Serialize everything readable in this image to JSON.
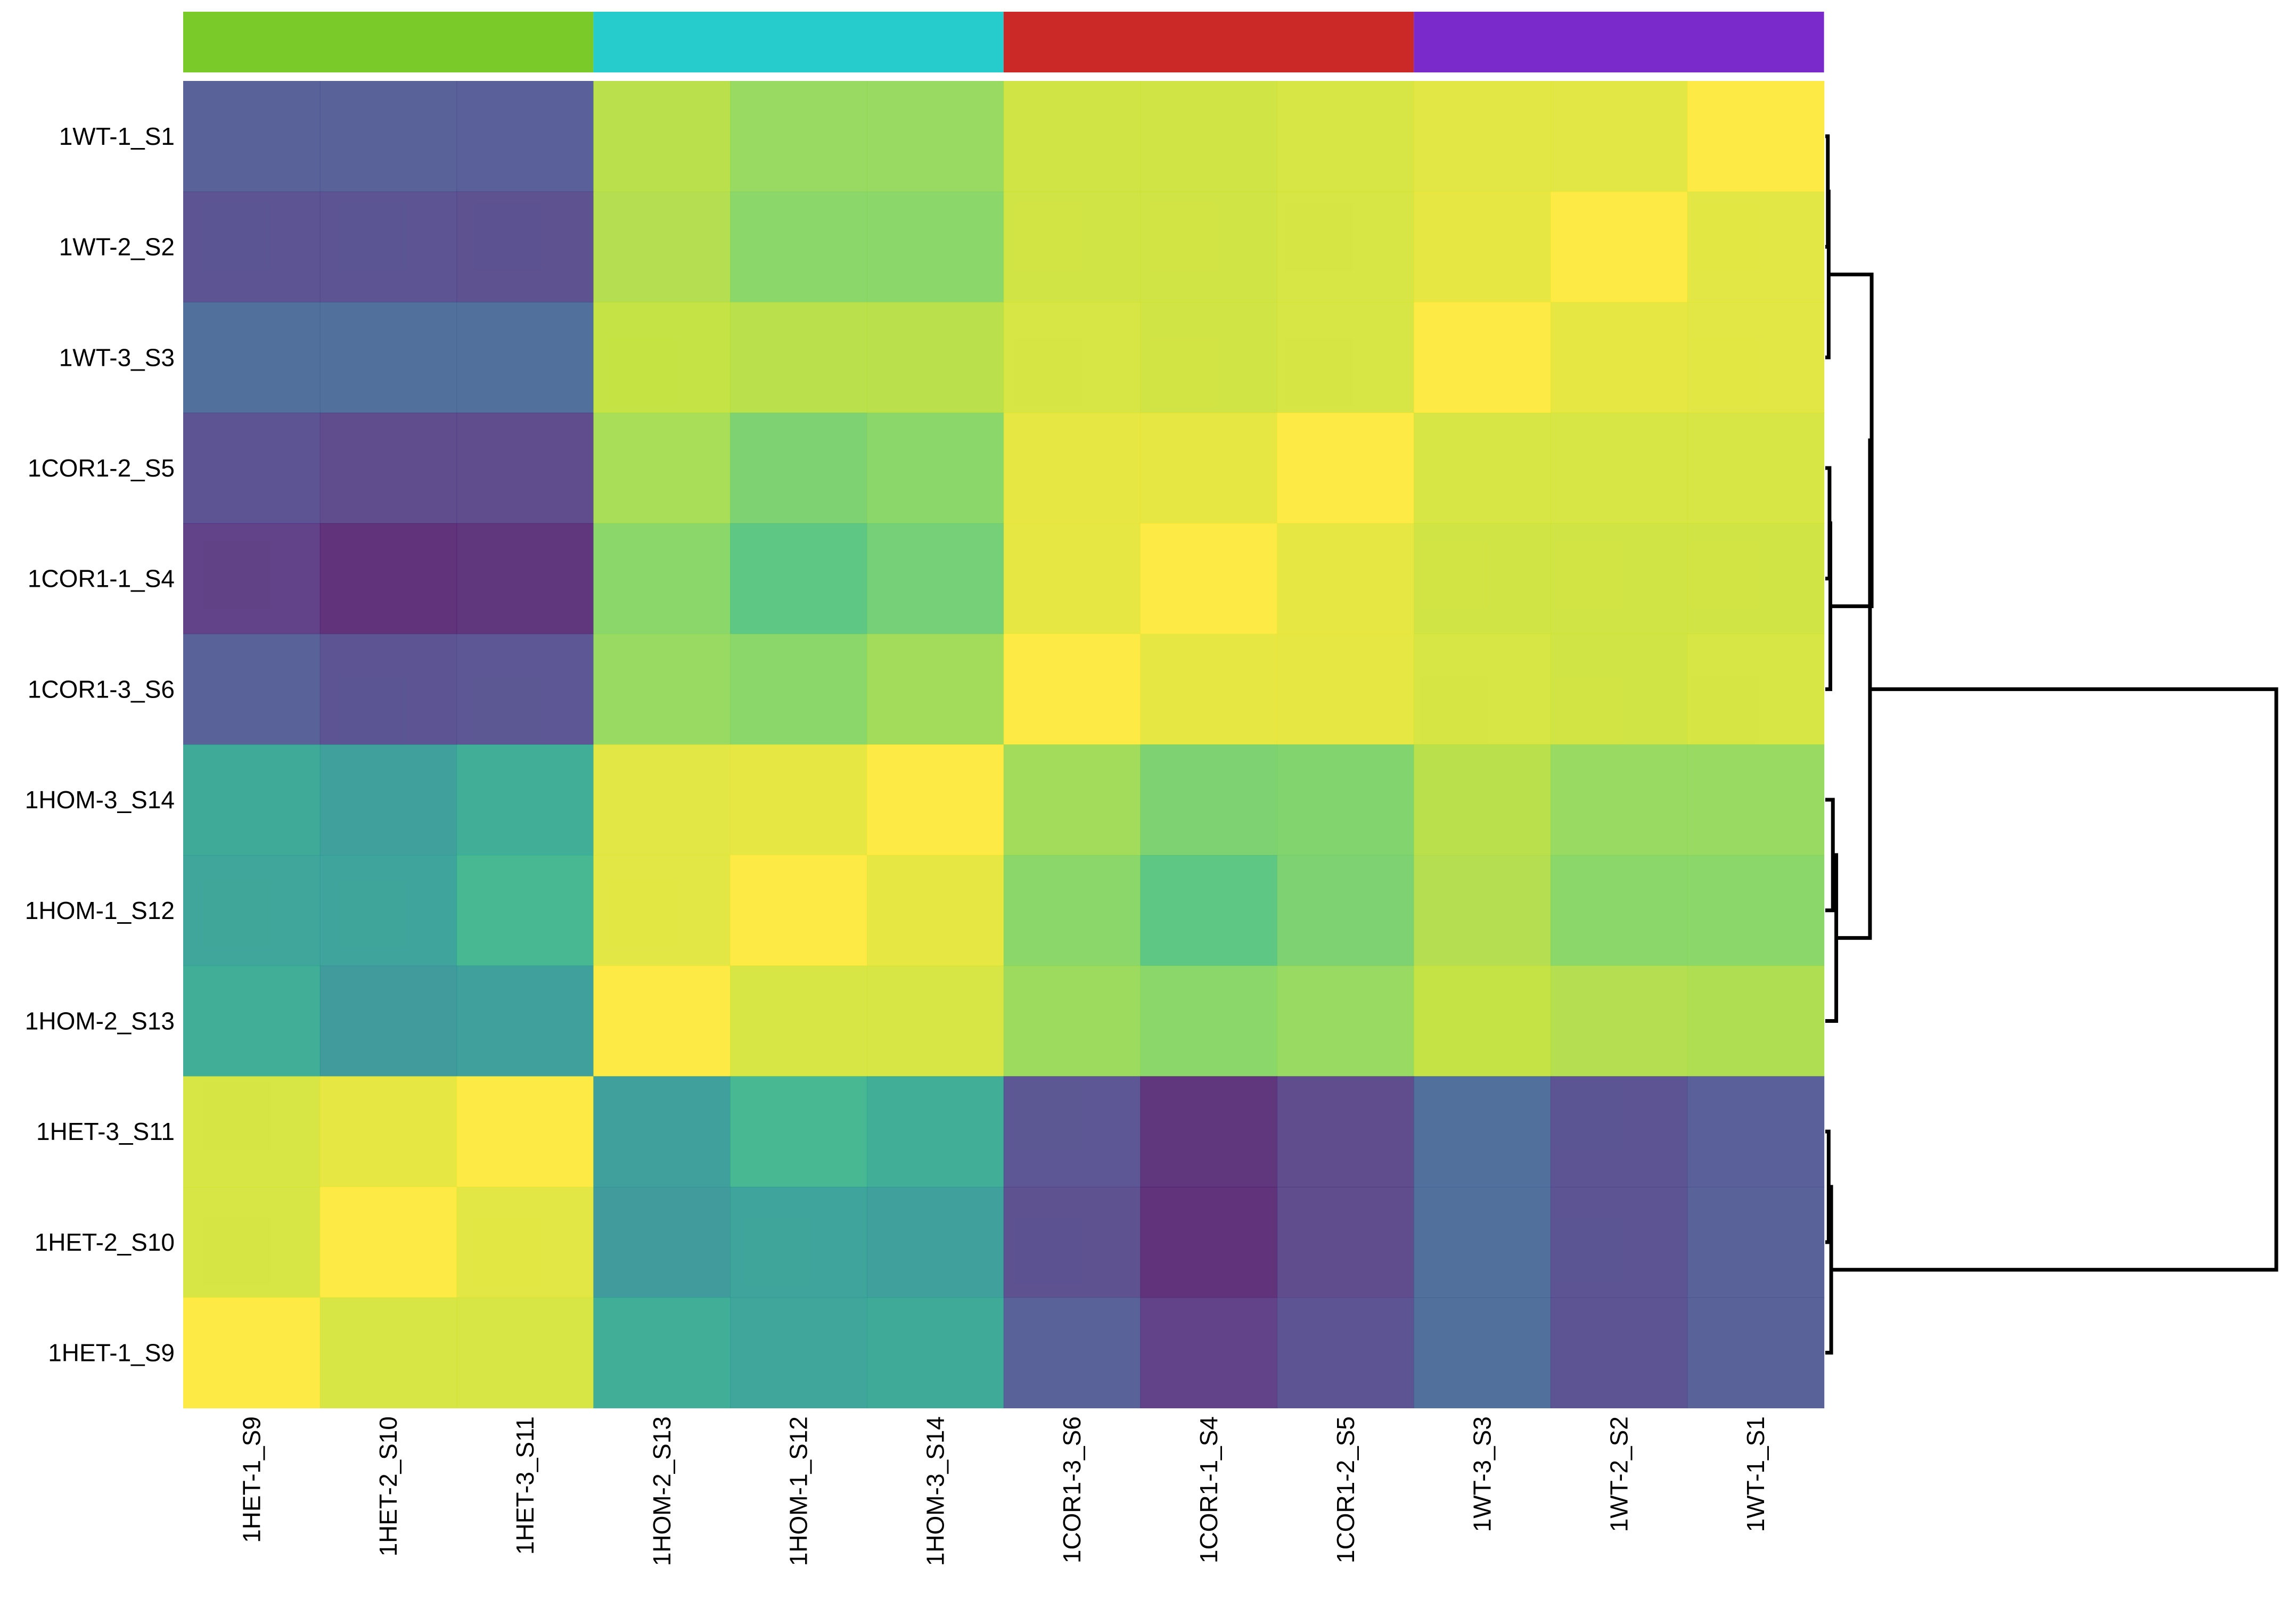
{
  "chart_data": {
    "type": "heatmap",
    "title": "",
    "rows": [
      "1WT-1_S1",
      "1WT-2_S2",
      "1WT-3_S3",
      "1COR1-2_S5",
      "1COR1-1_S4",
      "1COR1-3_S6",
      "1HOM-3_S14",
      "1HOM-1_S12",
      "1HOM-2_S13",
      "1HET-3_S11",
      "1HET-2_S10",
      "1HET-1_S9"
    ],
    "columns": [
      "1HET-1_S9",
      "1HET-2_S10",
      "1HET-3_S11",
      "1HOM-2_S13",
      "1HOM-1_S12",
      "1HOM-3_S14",
      "1COR1-3_S6",
      "1COR1-1_S4",
      "1COR1-2_S5",
      "1WT-3_S3",
      "1WT-2_S2",
      "1WT-1_S1"
    ],
    "value_range": [
      0,
      1
    ],
    "colormap": "viridis",
    "values": [
      [
        0.22,
        0.22,
        0.21,
        0.88,
        0.82,
        0.82,
        0.92,
        0.92,
        0.93,
        0.95,
        0.95,
        1.0
      ],
      [
        0.17,
        0.17,
        0.16,
        0.87,
        0.8,
        0.8,
        0.92,
        0.92,
        0.93,
        0.96,
        1.0,
        0.95
      ],
      [
        0.28,
        0.28,
        0.28,
        0.9,
        0.88,
        0.88,
        0.93,
        0.92,
        0.93,
        1.0,
        0.96,
        0.95
      ],
      [
        0.17,
        0.14,
        0.14,
        0.85,
        0.77,
        0.8,
        0.96,
        0.96,
        1.0,
        0.93,
        0.93,
        0.93
      ],
      [
        0.1,
        0.05,
        0.06,
        0.8,
        0.7,
        0.75,
        0.96,
        1.0,
        0.96,
        0.92,
        0.92,
        0.92
      ],
      [
        0.22,
        0.17,
        0.18,
        0.82,
        0.8,
        0.84,
        1.0,
        0.96,
        0.96,
        0.93,
        0.92,
        0.93
      ],
      [
        0.55,
        0.5,
        0.58,
        0.95,
        0.96,
        1.0,
        0.84,
        0.77,
        0.78,
        0.88,
        0.82,
        0.82
      ],
      [
        0.53,
        0.52,
        0.62,
        0.95,
        1.0,
        0.96,
        0.8,
        0.7,
        0.77,
        0.87,
        0.8,
        0.8
      ],
      [
        0.58,
        0.48,
        0.5,
        1.0,
        0.93,
        0.93,
        0.83,
        0.8,
        0.82,
        0.9,
        0.87,
        0.86
      ],
      [
        0.93,
        0.96,
        1.0,
        0.5,
        0.62,
        0.58,
        0.18,
        0.06,
        0.14,
        0.28,
        0.17,
        0.21
      ],
      [
        0.93,
        1.0,
        0.95,
        0.48,
        0.52,
        0.5,
        0.16,
        0.05,
        0.14,
        0.28,
        0.17,
        0.22
      ],
      [
        1.0,
        0.93,
        0.93,
        0.58,
        0.53,
        0.55,
        0.22,
        0.1,
        0.17,
        0.28,
        0.17,
        0.22
      ]
    ],
    "column_groups": [
      {
        "columns": [
          0,
          1,
          2
        ],
        "color": "#7ACB29"
      },
      {
        "columns": [
          3,
          4,
          5
        ],
        "color": "#26CBCB"
      },
      {
        "columns": [
          6,
          7,
          8
        ],
        "color": "#CB2828"
      },
      {
        "columns": [
          9,
          10,
          11
        ],
        "color": "#7A29CB"
      }
    ],
    "row_dendrogram": [
      {
        "merge": [
          0,
          1
        ],
        "height": 0.3
      },
      {
        "merge": [
          "n0",
          2
        ],
        "height": 0.4
      },
      {
        "merge": [
          3,
          4
        ],
        "height": 0.5
      },
      {
        "merge": [
          "n2",
          5
        ],
        "height": 0.6
      },
      {
        "merge": [
          "n1",
          "n3"
        ],
        "height": 5.5
      },
      {
        "merge": [
          6,
          7
        ],
        "height": 0.9
      },
      {
        "merge": [
          "n5",
          8
        ],
        "height": 1.3
      },
      {
        "merge": [
          "n4",
          "n6"
        ],
        "height": 5.3
      },
      {
        "merge": [
          9,
          10
        ],
        "height": 0.4
      },
      {
        "merge": [
          "n8",
          11
        ],
        "height": 0.7
      },
      {
        "merge": [
          "n7",
          "n9"
        ],
        "height": 53.5
      }
    ]
  }
}
